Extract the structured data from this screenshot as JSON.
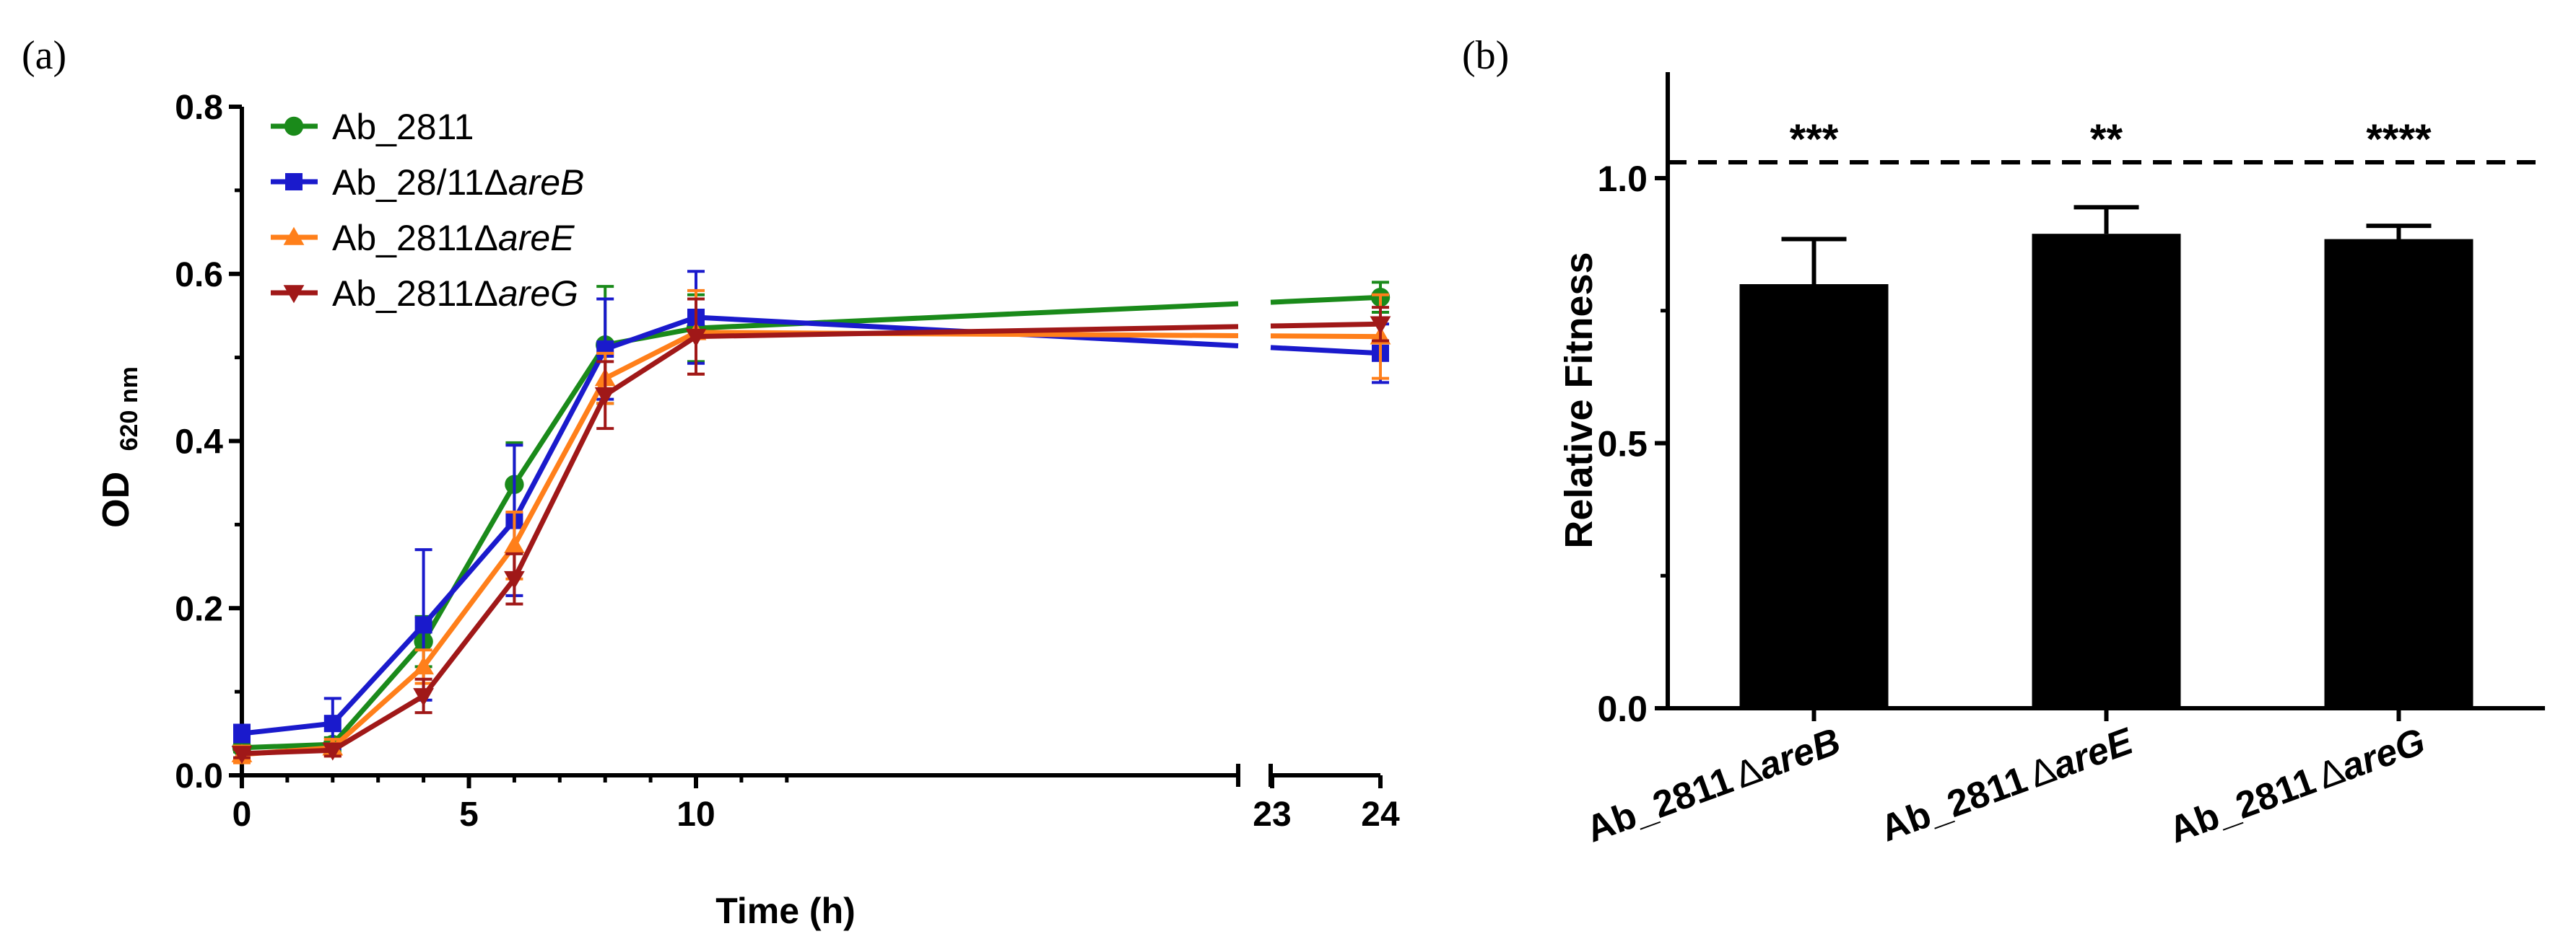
{
  "panels": {
    "a_label": "(a)",
    "b_label": "(b)"
  },
  "chart_data": [
    {
      "type": "line",
      "panel": "(a)",
      "title": "",
      "xlabel": "Time (h)",
      "ylabel": {
        "main": "OD",
        "subscript": "620 nm"
      },
      "xlim": [
        0,
        24
      ],
      "ylim": [
        0,
        0.8
      ],
      "x_axis_break": {
        "from": 10,
        "to": 23
      },
      "xticks": [
        "0",
        "5",
        "10",
        "23",
        "24"
      ],
      "yticks": [
        "0.0",
        "0.2",
        "0.4",
        "0.6",
        "0.8"
      ],
      "legend_position": "top-left",
      "x": [
        0,
        2,
        4,
        6,
        8,
        10,
        24
      ],
      "series": [
        {
          "name": "Ab_2811",
          "name_base": "Ab_2811",
          "name_italic": "",
          "color": "#1a8a1a",
          "marker": "circle",
          "values": [
            0.033,
            0.037,
            0.16,
            0.348,
            0.515,
            0.535,
            0.572
          ],
          "errors": [
            0.005,
            0.008,
            0.03,
            0.05,
            0.07,
            0.04,
            0.018
          ]
        },
        {
          "name": "Ab_28/11ΔareB",
          "name_base": "Ab_28/11Δ",
          "name_italic": "areB",
          "color": "#1a1acc",
          "marker": "square",
          "values": [
            0.05,
            0.062,
            0.18,
            0.305,
            0.51,
            0.548,
            0.505
          ],
          "errors": [
            0.01,
            0.03,
            0.09,
            0.09,
            0.06,
            0.055,
            0.035
          ]
        },
        {
          "name": "Ab_2811ΔareE",
          "name_base": "Ab_2811Δ",
          "name_italic": "areE",
          "color": "#ff7f1a",
          "marker": "triangle-up",
          "values": [
            0.025,
            0.033,
            0.13,
            0.275,
            0.475,
            0.53,
            0.525
          ],
          "errors": [
            0.01,
            0.01,
            0.02,
            0.04,
            0.03,
            0.05,
            0.05
          ]
        },
        {
          "name": "Ab_2811ΔareG",
          "name_base": "Ab_2811Δ",
          "name_italic": "areG",
          "color": "#a01818",
          "marker": "triangle-down",
          "values": [
            0.026,
            0.03,
            0.095,
            0.235,
            0.455,
            0.525,
            0.54
          ],
          "errors": [
            0.005,
            0.007,
            0.02,
            0.03,
            0.04,
            0.045,
            0.02
          ]
        }
      ]
    },
    {
      "type": "bar",
      "panel": "(b)",
      "title": "",
      "xlabel": "",
      "ylabel": "Relative Fitness",
      "ylim": [
        0,
        1.2
      ],
      "yticks": [
        "0.0",
        "0.5",
        "1.0"
      ],
      "reference_line": 1.03,
      "categories": [
        "Ab_2811ΔareB",
        "Ab_2811ΔareE",
        "Ab_2811ΔareG"
      ],
      "category_parts": [
        {
          "base": "Ab_2811",
          "delta": "Δ",
          "italic": "areB"
        },
        {
          "base": "Ab_2811",
          "delta": "Δ",
          "italic": "areE"
        },
        {
          "base": "Ab_2811",
          "delta": "Δ",
          "italic": "areG"
        }
      ],
      "values": [
        0.8,
        0.895,
        0.885
      ],
      "errors": [
        0.085,
        0.05,
        0.025
      ],
      "significance": [
        "***",
        "**",
        "****"
      ],
      "bar_color": "#000000"
    }
  ]
}
